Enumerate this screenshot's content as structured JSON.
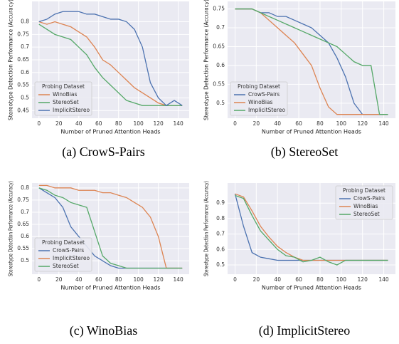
{
  "chart_data": [
    {
      "type": "line",
      "caption": "(a) CrowS-Pairs",
      "xlabel": "Number of Pruned Attention Heads",
      "ylabel": "Stereotype Detection Performance (Accuracy)",
      "x": [
        0,
        8,
        16,
        24,
        32,
        40,
        48,
        56,
        64,
        72,
        80,
        88,
        96,
        104,
        112,
        120,
        128,
        136,
        144
      ],
      "xlim": [
        -7,
        151
      ],
      "xticks": [
        0,
        20,
        40,
        60,
        80,
        100,
        120,
        140
      ],
      "ylim": [
        0.42,
        0.88
      ],
      "yticks": [
        0.45,
        0.5,
        0.55,
        0.6,
        0.65,
        0.7,
        0.75,
        0.8
      ],
      "grid": true,
      "legend_title": "Probing Dataset",
      "legend_loc": "lower left",
      "series": [
        {
          "name": "WinoBias",
          "color": "#dd8452",
          "values": [
            0.8,
            0.79,
            0.8,
            0.79,
            0.78,
            0.76,
            0.74,
            0.7,
            0.65,
            0.63,
            0.6,
            0.57,
            0.54,
            0.52,
            0.5,
            0.48,
            0.47,
            0.47,
            0.47
          ]
        },
        {
          "name": "StereoSet",
          "color": "#55a868",
          "values": [
            0.79,
            0.77,
            0.75,
            0.74,
            0.73,
            0.7,
            0.67,
            0.62,
            0.58,
            0.55,
            0.52,
            0.49,
            0.48,
            0.47,
            0.47,
            0.47,
            0.47,
            0.47,
            0.47
          ]
        },
        {
          "name": "ImplicitStereo",
          "color": "#4c72b0",
          "values": [
            0.8,
            0.81,
            0.83,
            0.84,
            0.84,
            0.84,
            0.83,
            0.83,
            0.82,
            0.81,
            0.81,
            0.8,
            0.77,
            0.7,
            0.56,
            0.5,
            0.47,
            0.49,
            0.47
          ]
        }
      ]
    },
    {
      "type": "line",
      "caption": "(b) StereoSet",
      "xlabel": "Number of Pruned Attention Heads",
      "ylabel": "Stereotype Detection Performance (Accuracy)",
      "x": [
        0,
        8,
        16,
        24,
        32,
        40,
        48,
        56,
        64,
        72,
        80,
        88,
        96,
        104,
        112,
        120,
        128,
        136,
        144
      ],
      "xlim": [
        -7,
        151
      ],
      "xticks": [
        0,
        20,
        40,
        60,
        80,
        100,
        120,
        140
      ],
      "ylim": [
        0.46,
        0.77
      ],
      "yticks": [
        0.5,
        0.55,
        0.6,
        0.65,
        0.7,
        0.75
      ],
      "grid": true,
      "legend_title": "Probing Dataset",
      "legend_loc": "lower left",
      "series": [
        {
          "name": "CrowS-Pairs",
          "color": "#4c72b0",
          "values": [
            0.75,
            0.75,
            0.75,
            0.74,
            0.74,
            0.73,
            0.73,
            0.72,
            0.71,
            0.7,
            0.68,
            0.66,
            0.62,
            0.57,
            0.5,
            0.47,
            0.47,
            0.47,
            0.47
          ]
        },
        {
          "name": "WinoBias",
          "color": "#dd8452",
          "values": [
            0.75,
            0.75,
            0.75,
            0.74,
            0.72,
            0.7,
            0.68,
            0.66,
            0.63,
            0.6,
            0.54,
            0.49,
            0.47,
            0.47,
            0.47,
            0.47,
            0.47,
            0.47,
            0.47
          ]
        },
        {
          "name": "ImplicitStereo",
          "color": "#55a868",
          "values": [
            0.75,
            0.75,
            0.75,
            0.74,
            0.73,
            0.72,
            0.71,
            0.7,
            0.69,
            0.68,
            0.67,
            0.66,
            0.65,
            0.63,
            0.61,
            0.6,
            0.6,
            0.47,
            0.47
          ]
        }
      ]
    },
    {
      "type": "line",
      "caption": "(c) WinoBias",
      "xlabel": "Number of Pruned Attention Heads",
      "ylabel": "Stereotype Detection Performance (Accuracy)",
      "x": [
        0,
        8,
        16,
        24,
        32,
        40,
        48,
        56,
        64,
        72,
        80,
        88,
        96,
        104,
        112,
        120,
        128,
        136,
        144
      ],
      "xlim": [
        -7,
        151
      ],
      "xticks": [
        0,
        20,
        40,
        60,
        80,
        100,
        120,
        140
      ],
      "ylim": [
        0.445,
        0.82
      ],
      "yticks": [
        0.5,
        0.55,
        0.6,
        0.65,
        0.7,
        0.75,
        0.8
      ],
      "grid": true,
      "legend_title": "Probing Dataset",
      "legend_loc": "lower left",
      "series": [
        {
          "name": "CrowS-Pairs",
          "color": "#4c72b0",
          "values": [
            0.8,
            0.78,
            0.76,
            0.72,
            0.64,
            0.6,
            0.56,
            0.52,
            0.5,
            0.48,
            0.47,
            0.47,
            0.47,
            0.47,
            0.47,
            0.47,
            0.47,
            0.47,
            0.47
          ]
        },
        {
          "name": "ImplicitStereo",
          "color": "#dd8452",
          "values": [
            0.81,
            0.81,
            0.8,
            0.8,
            0.8,
            0.79,
            0.79,
            0.79,
            0.78,
            0.78,
            0.77,
            0.76,
            0.74,
            0.72,
            0.68,
            0.6,
            0.47,
            0.47,
            0.47
          ]
        },
        {
          "name": "StereoSet",
          "color": "#55a868",
          "values": [
            0.8,
            0.79,
            0.77,
            0.76,
            0.74,
            0.73,
            0.72,
            0.62,
            0.52,
            0.49,
            0.48,
            0.47,
            0.47,
            0.47,
            0.47,
            0.47,
            0.47,
            0.47,
            0.47
          ]
        }
      ]
    },
    {
      "type": "line",
      "caption": "(d) ImplicitStereo",
      "xlabel": "Number of Pruned Attention Heads",
      "ylabel": "Stereotype Detection Performance (Accuracy)",
      "x": [
        0,
        8,
        16,
        24,
        32,
        40,
        48,
        56,
        64,
        72,
        80,
        88,
        96,
        104,
        112,
        120,
        128,
        136,
        144
      ],
      "xlim": [
        -7,
        151
      ],
      "xticks": [
        0,
        20,
        40,
        60,
        80,
        100,
        120,
        140
      ],
      "ylim": [
        0.44,
        1.03
      ],
      "yticks": [
        0.5,
        0.6,
        0.7,
        0.8,
        0.9
      ],
      "grid": true,
      "legend_title": "Probing Dataset",
      "legend_loc": "upper right",
      "series": [
        {
          "name": "CrowS-Pairs",
          "color": "#4c72b0",
          "values": [
            0.96,
            0.75,
            0.58,
            0.55,
            0.54,
            0.53,
            0.53,
            0.53,
            0.53,
            0.53,
            0.53,
            0.53,
            0.53,
            0.53,
            0.53,
            0.53,
            0.53,
            0.53,
            0.53
          ]
        },
        {
          "name": "WinoBias",
          "color": "#dd8452",
          "values": [
            0.96,
            0.94,
            0.85,
            0.75,
            0.68,
            0.62,
            0.58,
            0.55,
            0.53,
            0.53,
            0.53,
            0.53,
            0.53,
            0.53,
            0.53,
            0.53,
            0.53,
            0.53,
            0.53
          ]
        },
        {
          "name": "StereoSet",
          "color": "#55a868",
          "values": [
            0.95,
            0.93,
            0.82,
            0.72,
            0.66,
            0.6,
            0.56,
            0.55,
            0.52,
            0.53,
            0.55,
            0.52,
            0.5,
            0.53,
            0.53,
            0.53,
            0.53,
            0.53,
            0.53
          ]
        }
      ]
    }
  ]
}
